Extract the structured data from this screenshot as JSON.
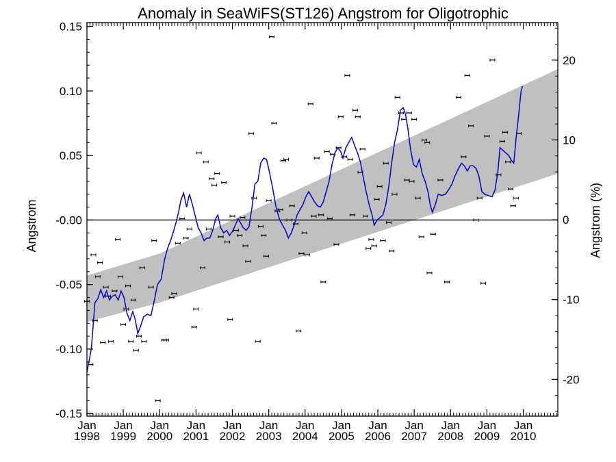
{
  "chart_data": {
    "type": "scatter",
    "title": "Anomaly in SeaWiFS(ST126) Angstrom for Oligotrophic",
    "ylabel": "Angstrom",
    "y2label": "Angstrom (%)",
    "xlim": [
      1998.0,
      2010.95
    ],
    "ylim": [
      -0.152,
      0.153
    ],
    "y2lim": [
      -24.6,
      24.7
    ],
    "y_ticks": [
      0.15,
      0.1,
      0.05,
      0.0,
      -0.05,
      -0.1,
      -0.15
    ],
    "y_tick_labels": [
      "0.15",
      "0.10",
      "0.05",
      "-0.00",
      "-0.05",
      "-0.10",
      "-0.15"
    ],
    "y2_ticks": [
      20,
      10,
      0,
      -10,
      -20
    ],
    "y2_tick_labels": [
      "20",
      "10",
      "0",
      "-10",
      "-20"
    ],
    "x_ticks": [
      {
        "year": 1998,
        "label_top": "Jan",
        "label_bottom": "1998"
      },
      {
        "year": 1999,
        "label_top": "Jan",
        "label_bottom": "1999"
      },
      {
        "year": 2000,
        "label_top": "Jan",
        "label_bottom": "2000"
      },
      {
        "year": 2001,
        "label_top": "Jan",
        "label_bottom": "2001"
      },
      {
        "year": 2002,
        "label_top": "Jan",
        "label_bottom": "2002"
      },
      {
        "year": 2003,
        "label_top": "Jan",
        "label_bottom": "2003"
      },
      {
        "year": 2004,
        "label_top": "Jan",
        "label_bottom": "2004"
      },
      {
        "year": 2005,
        "label_top": "Jan",
        "label_bottom": "2005"
      },
      {
        "year": 2006,
        "label_top": "Jan",
        "label_bottom": "2006"
      },
      {
        "year": 2007,
        "label_top": "Jan",
        "label_bottom": "2007"
      },
      {
        "year": 2008,
        "label_top": "Jan",
        "label_bottom": "2008"
      },
      {
        "year": 2009,
        "label_top": "Jan",
        "label_bottom": "2009"
      },
      {
        "year": 2010,
        "label_top": "Jan",
        "label_bottom": "2010"
      }
    ],
    "zero_line": 0,
    "trend_band": {
      "x": [
        1998.0,
        2000.0,
        2010.95
      ],
      "upper": [
        -0.043,
        -0.026,
        0.117
      ],
      "lower": [
        -0.079,
        -0.064,
        0.036
      ]
    },
    "points": [
      [
        1998.0,
        -0.063
      ],
      [
        1998.1,
        -0.112
      ],
      [
        1998.18,
        -0.027
      ],
      [
        1998.22,
        -0.078
      ],
      [
        1998.3,
        -0.044
      ],
      [
        1998.36,
        -0.033
      ],
      [
        1998.44,
        -0.095
      ],
      [
        1998.52,
        -0.052
      ],
      [
        1998.58,
        -0.059
      ],
      [
        1998.66,
        -0.094
      ],
      [
        1998.76,
        -0.055
      ],
      [
        1998.85,
        -0.015
      ],
      [
        1998.92,
        -0.044
      ],
      [
        1999.0,
        -0.081
      ],
      [
        1999.08,
        -0.069
      ],
      [
        1999.13,
        -0.051
      ],
      [
        1999.21,
        -0.094
      ],
      [
        1999.28,
        -0.062
      ],
      [
        1999.35,
        -0.101
      ],
      [
        1999.43,
        -0.09
      ],
      [
        1999.52,
        -0.037
      ],
      [
        1999.57,
        -0.094
      ],
      [
        1999.76,
        -0.052
      ],
      [
        1999.85,
        -0.016
      ],
      [
        1999.95,
        -0.14
      ],
      [
        2000.12,
        -0.093
      ],
      [
        2000.18,
        -0.093
      ],
      [
        2000.33,
        -0.06
      ],
      [
        2000.4,
        -0.057
      ],
      [
        2000.5,
        -0.018
      ],
      [
        2000.62,
        0.001
      ],
      [
        2000.72,
        -0.014
      ],
      [
        2000.82,
        -0.007
      ],
      [
        2000.95,
        -0.083
      ],
      [
        2001.0,
        -0.069
      ],
      [
        2001.08,
        0.052
      ],
      [
        2001.18,
        -0.037
      ],
      [
        2001.27,
        0.045
      ],
      [
        2001.35,
        -0.007
      ],
      [
        2001.43,
        0.032
      ],
      [
        2001.5,
        0.027
      ],
      [
        2001.58,
        0.036
      ],
      [
        2001.68,
        -0.013
      ],
      [
        2001.77,
        0.029
      ],
      [
        2001.86,
        -0.017
      ],
      [
        2001.94,
        -0.077
      ],
      [
        2002.0,
        0.003
      ],
      [
        2002.1,
        -0.008
      ],
      [
        2002.2,
        -0.012
      ],
      [
        2002.28,
        0.002
      ],
      [
        2002.36,
        -0.02
      ],
      [
        2002.43,
        -0.032
      ],
      [
        2002.52,
        0.067
      ],
      [
        2002.6,
        0.017
      ],
      [
        2002.7,
        -0.094
      ],
      [
        2002.78,
        -0.005
      ],
      [
        2002.86,
        -0.012
      ],
      [
        2002.93,
        -0.028
      ],
      [
        2003.0,
        0.015
      ],
      [
        2003.08,
        0.142
      ],
      [
        2003.15,
        0.075
      ],
      [
        2003.24,
        0.007
      ],
      [
        2003.32,
        0.008
      ],
      [
        2003.4,
        0.046
      ],
      [
        2003.48,
        0.047
      ],
      [
        2003.56,
        0.0
      ],
      [
        2003.64,
        0.011
      ],
      [
        2003.74,
        -0.003
      ],
      [
        2003.82,
        -0.086
      ],
      [
        2003.9,
        -0.026
      ],
      [
        2003.98,
        -0.01
      ],
      [
        2004.06,
        -0.027
      ],
      [
        2004.15,
        0.09
      ],
      [
        2004.24,
        0.003
      ],
      [
        2004.32,
        0.048
      ],
      [
        2004.44,
        0.004
      ],
      [
        2004.5,
        -0.048
      ],
      [
        2004.6,
        0.053
      ],
      [
        2004.68,
        0.001
      ],
      [
        2004.76,
        0.051
      ],
      [
        2004.86,
        -0.019
      ],
      [
        2004.92,
        0.056
      ],
      [
        2004.98,
        0.08
      ],
      [
        2005.08,
        0.049
      ],
      [
        2005.16,
        0.112
      ],
      [
        2005.24,
        0.047
      ],
      [
        2005.3,
        0.004
      ],
      [
        2005.38,
        0.085
      ],
      [
        2005.45,
        0.08
      ],
      [
        2005.52,
        0.037
      ],
      [
        2005.58,
        0.055
      ],
      [
        2005.66,
        0.003
      ],
      [
        2005.74,
        -0.022
      ],
      [
        2005.82,
        -0.015
      ],
      [
        2005.9,
        -0.02
      ],
      [
        2005.97,
        0.016
      ],
      [
        2006.05,
        0.026
      ],
      [
        2006.14,
        -0.016
      ],
      [
        2006.22,
        0.044
      ],
      [
        2006.3,
        -0.002
      ],
      [
        2006.38,
        -0.024
      ],
      [
        2006.46,
        0.02
      ],
      [
        2006.54,
        0.095
      ],
      [
        2006.64,
        0.083
      ],
      [
        2006.72,
        0.078
      ],
      [
        2006.8,
        0.031
      ],
      [
        2006.86,
        0.083
      ],
      [
        2006.93,
        0.03
      ],
      [
        2007.0,
        0.078
      ],
      [
        2007.1,
        0.017
      ],
      [
        2007.2,
        -0.013
      ],
      [
        2007.28,
        0.062
      ],
      [
        2007.36,
        0.06
      ],
      [
        2007.42,
        -0.041
      ],
      [
        2007.52,
        -0.011
      ],
      [
        2007.72,
        0.031
      ],
      [
        2007.9,
        -0.048
      ],
      [
        2008.22,
        0.095
      ],
      [
        2008.36,
        0.049
      ],
      [
        2008.46,
        0.112
      ],
      [
        2008.56,
        0.073
      ],
      [
        2008.7,
        0.0
      ],
      [
        2008.8,
        0.017
      ],
      [
        2008.9,
        -0.049
      ],
      [
        2009.0,
        0.065
      ],
      [
        2009.15,
        0.124
      ],
      [
        2009.32,
        0.035
      ],
      [
        2009.42,
        0.061
      ],
      [
        2009.5,
        0.068
      ],
      [
        2009.58,
        0.045
      ],
      [
        2009.65,
        0.024
      ],
      [
        2009.72,
        0.011
      ],
      [
        2009.8,
        0.017
      ],
      [
        2009.88,
        0.067
      ]
    ],
    "smooth_line": [
      [
        1998.0,
        -0.118
      ],
      [
        1998.12,
        -0.1
      ],
      [
        1998.22,
        -0.064
      ],
      [
        1998.3,
        -0.061
      ],
      [
        1998.38,
        -0.054
      ],
      [
        1998.46,
        -0.06
      ],
      [
        1998.54,
        -0.055
      ],
      [
        1998.62,
        -0.062
      ],
      [
        1998.7,
        -0.059
      ],
      [
        1998.78,
        -0.058
      ],
      [
        1998.86,
        -0.062
      ],
      [
        1998.94,
        -0.055
      ],
      [
        1999.02,
        -0.06
      ],
      [
        1999.1,
        -0.072
      ],
      [
        1999.18,
        -0.078
      ],
      [
        1999.26,
        -0.071
      ],
      [
        1999.32,
        -0.076
      ],
      [
        1999.4,
        -0.088
      ],
      [
        1999.48,
        -0.082
      ],
      [
        1999.56,
        -0.075
      ],
      [
        1999.66,
        -0.073
      ],
      [
        1999.76,
        -0.074
      ],
      [
        1999.84,
        -0.064
      ],
      [
        1999.94,
        -0.05
      ],
      [
        2000.04,
        -0.046
      ],
      [
        2000.14,
        -0.03
      ],
      [
        2000.22,
        -0.022
      ],
      [
        2000.3,
        -0.016
      ],
      [
        2000.38,
        -0.009
      ],
      [
        2000.46,
        -0.001
      ],
      [
        2000.52,
        0.006
      ],
      [
        2000.58,
        0.015
      ],
      [
        2000.66,
        0.021
      ],
      [
        2000.74,
        0.01
      ],
      [
        2000.82,
        0.02
      ],
      [
        2000.9,
        0.012
      ],
      [
        2000.98,
        0.003
      ],
      [
        2001.06,
        -0.006
      ],
      [
        2001.14,
        -0.01
      ],
      [
        2001.22,
        -0.016
      ],
      [
        2001.3,
        -0.014
      ],
      [
        2001.38,
        -0.014
      ],
      [
        2001.46,
        -0.008
      ],
      [
        2001.54,
        0.001
      ],
      [
        2001.6,
        0.004
      ],
      [
        2001.68,
        -0.006
      ],
      [
        2001.76,
        -0.01
      ],
      [
        2001.84,
        -0.008
      ],
      [
        2001.92,
        -0.012
      ],
      [
        2002.0,
        -0.009
      ],
      [
        2002.08,
        -0.004
      ],
      [
        2002.16,
        0.001
      ],
      [
        2002.24,
        -0.003
      ],
      [
        2002.3,
        -0.006
      ],
      [
        2002.38,
        -0.008
      ],
      [
        2002.46,
        -0.005
      ],
      [
        2002.54,
        0.01
      ],
      [
        2002.62,
        0.028
      ],
      [
        2002.7,
        0.03
      ],
      [
        2002.78,
        0.044
      ],
      [
        2002.86,
        0.048
      ],
      [
        2002.94,
        0.047
      ],
      [
        2003.02,
        0.037
      ],
      [
        2003.1,
        0.026
      ],
      [
        2003.2,
        0.01
      ],
      [
        2003.3,
        0.0
      ],
      [
        2003.38,
        -0.004
      ],
      [
        2003.46,
        -0.008
      ],
      [
        2003.54,
        -0.014
      ],
      [
        2003.62,
        -0.01
      ],
      [
        2003.7,
        -0.004
      ],
      [
        2003.78,
        0.004
      ],
      [
        2003.86,
        0.008
      ],
      [
        2003.94,
        0.012
      ],
      [
        2004.02,
        0.018
      ],
      [
        2004.1,
        0.022
      ],
      [
        2004.18,
        0.018
      ],
      [
        2004.26,
        0.014
      ],
      [
        2004.34,
        0.011
      ],
      [
        2004.42,
        0.01
      ],
      [
        2004.5,
        0.014
      ],
      [
        2004.58,
        0.022
      ],
      [
        2004.66,
        0.03
      ],
      [
        2004.74,
        0.043
      ],
      [
        2004.82,
        0.052
      ],
      [
        2004.9,
        0.056
      ],
      [
        2004.98,
        0.053
      ],
      [
        2005.04,
        0.048
      ],
      [
        2005.12,
        0.056
      ],
      [
        2005.2,
        0.06
      ],
      [
        2005.28,
        0.064
      ],
      [
        2005.36,
        0.058
      ],
      [
        2005.44,
        0.052
      ],
      [
        2005.52,
        0.045
      ],
      [
        2005.6,
        0.033
      ],
      [
        2005.68,
        0.022
      ],
      [
        2005.76,
        0.012
      ],
      [
        2005.84,
        0.004
      ],
      [
        2005.9,
        -0.004
      ],
      [
        2005.98,
        0.0
      ],
      [
        2006.06,
        0.002
      ],
      [
        2006.14,
        0.004
      ],
      [
        2006.22,
        0.012
      ],
      [
        2006.3,
        0.026
      ],
      [
        2006.38,
        0.044
      ],
      [
        2006.46,
        0.06
      ],
      [
        2006.54,
        0.07
      ],
      [
        2006.62,
        0.085
      ],
      [
        2006.7,
        0.087
      ],
      [
        2006.76,
        0.082
      ],
      [
        2006.82,
        0.072
      ],
      [
        2006.9,
        0.055
      ],
      [
        2006.98,
        0.043
      ],
      [
        2007.06,
        0.041
      ],
      [
        2007.14,
        0.047
      ],
      [
        2007.22,
        0.036
      ],
      [
        2007.3,
        0.03
      ],
      [
        2007.38,
        0.022
      ],
      [
        2007.44,
        0.012
      ],
      [
        2007.5,
        0.006
      ],
      [
        2007.58,
        0.012
      ],
      [
        2007.66,
        0.02
      ],
      [
        2007.76,
        0.019
      ],
      [
        2007.86,
        0.02
      ],
      [
        2007.96,
        0.024
      ],
      [
        2008.04,
        0.028
      ],
      [
        2008.12,
        0.034
      ],
      [
        2008.22,
        0.04
      ],
      [
        2008.3,
        0.044
      ],
      [
        2008.38,
        0.042
      ],
      [
        2008.46,
        0.038
      ],
      [
        2008.54,
        0.042
      ],
      [
        2008.62,
        0.042
      ],
      [
        2008.7,
        0.04
      ],
      [
        2008.78,
        0.034
      ],
      [
        2008.86,
        0.022
      ],
      [
        2008.94,
        0.02
      ],
      [
        2009.04,
        0.019
      ],
      [
        2009.14,
        0.018
      ],
      [
        2009.22,
        0.023
      ],
      [
        2009.3,
        0.037
      ],
      [
        2009.36,
        0.056
      ],
      [
        2009.44,
        0.054
      ],
      [
        2009.52,
        0.052
      ],
      [
        2009.6,
        0.05
      ],
      [
        2009.68,
        0.046
      ],
      [
        2009.74,
        0.044
      ],
      [
        2009.8,
        0.063
      ],
      [
        2009.86,
        0.078
      ],
      [
        2009.9,
        0.089
      ],
      [
        2009.94,
        0.1
      ],
      [
        2009.98,
        0.104
      ]
    ],
    "colors": {
      "band": "#c0c0c0",
      "line": "#0000cc",
      "points": "#000000",
      "axes": "#000000"
    },
    "grid": false
  }
}
